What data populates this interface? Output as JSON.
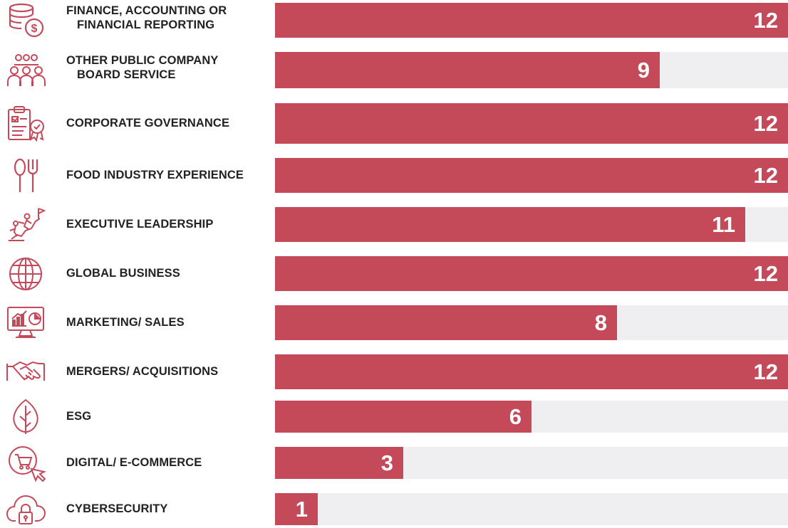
{
  "colors": {
    "bar": "#c44a5a",
    "track": "#efeef0",
    "icon": "#c44a5a",
    "label": "#222222"
  },
  "chart_data": {
    "type": "bar",
    "orientation": "horizontal",
    "categories": [
      "FINANCE, ACCOUNTING OR FINANCIAL REPORTING",
      "OTHER PUBLIC COMPANY BOARD SERVICE",
      "CORPORATE GOVERNANCE",
      "FOOD INDUSTRY EXPERIENCE",
      "EXECUTIVE LEADERSHIP",
      "GLOBAL BUSINESS",
      "MARKETING/ SALES",
      "MERGERS/ ACQUISITIONS",
      "ESG",
      "DIGITAL/ E-COMMERCE",
      "CYBERSECURITY"
    ],
    "values": [
      12,
      9,
      12,
      12,
      11,
      12,
      8,
      12,
      6,
      3,
      1
    ],
    "xlim": [
      0,
      12
    ],
    "grid": false,
    "legend": "none",
    "data_labels": "inside-end"
  },
  "rows": [
    {
      "label_lines": [
        "FINANCE, ACCOUNTING OR",
        "FINANCIAL REPORTING"
      ],
      "icon": "coins-dollar-icon"
    },
    {
      "label_lines": [
        "OTHER PUBLIC COMPANY",
        "BOARD SERVICE"
      ],
      "icon": "board-meeting-icon"
    },
    {
      "label_lines": [
        "CORPORATE GOVERNANCE"
      ],
      "icon": "clipboard-certificate-icon"
    },
    {
      "label_lines": [
        "FOOD INDUSTRY EXPERIENCE"
      ],
      "icon": "spoon-fork-icon"
    },
    {
      "label_lines": [
        "EXECUTIVE LEADERSHIP"
      ],
      "icon": "climbing-flag-icon"
    },
    {
      "label_lines": [
        "GLOBAL BUSINESS"
      ],
      "icon": "globe-icon"
    },
    {
      "label_lines": [
        "MARKETING/ SALES"
      ],
      "icon": "monitor-chart-icon"
    },
    {
      "label_lines": [
        "MERGERS/ ACQUISITIONS"
      ],
      "icon": "handshake-icon"
    },
    {
      "label_lines": [
        "ESG"
      ],
      "icon": "leaf-icon"
    },
    {
      "label_lines": [
        "DIGITAL/ E-COMMERCE"
      ],
      "icon": "cart-cursor-icon"
    },
    {
      "label_lines": [
        "CYBERSECURITY"
      ],
      "icon": "cloud-lock-icon"
    }
  ]
}
